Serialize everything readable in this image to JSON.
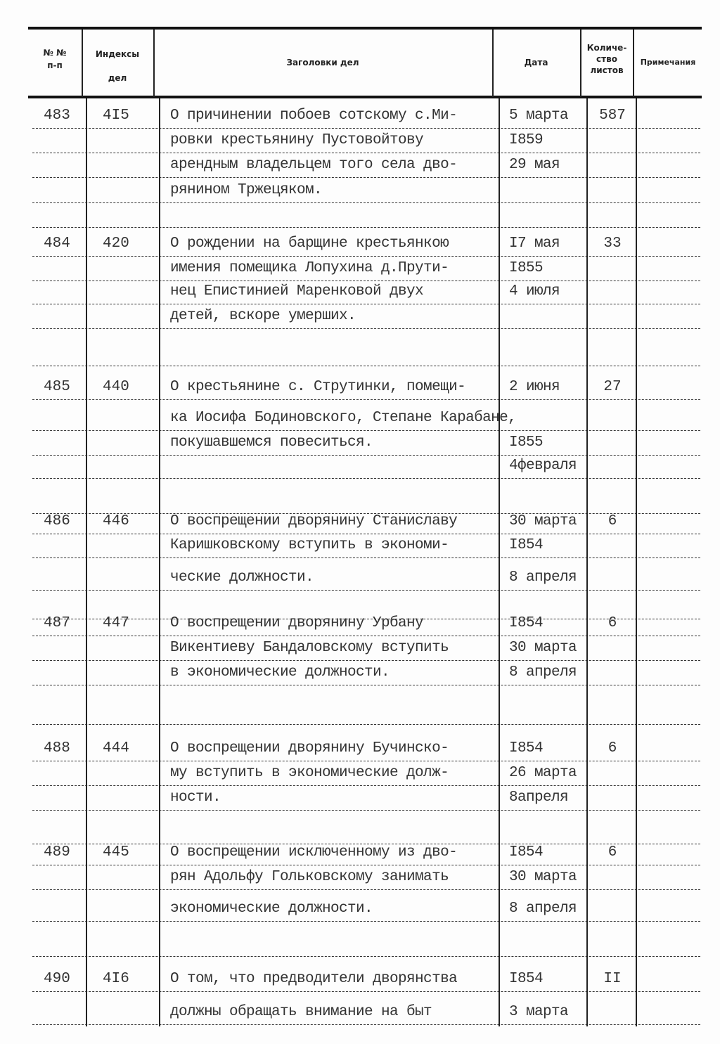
{
  "header": {
    "num": "№ №\nп-п",
    "index": "Индексы\nдел",
    "title": "Заголовки дел",
    "date": "Дата",
    "count": "Количе-\nство\nлистов",
    "notes": "Примечания"
  },
  "records": [
    {
      "num": "483",
      "index": "4I5",
      "count": "587",
      "lines": [
        {
          "title": "О причинении побоев сотскому с.Ми-",
          "date": "5 марта"
        },
        {
          "title": "ровки крестьянину Пустовойтову",
          "date": "I859"
        },
        {
          "title": "арендным владельцем того села дво-",
          "date": "29 мая"
        },
        {
          "title": "рянином Тржецяком.",
          "date": ""
        }
      ]
    },
    {
      "num": "484",
      "index": "420",
      "count": "33",
      "lines": [
        {
          "title": "О рождении на барщине крестьянкою",
          "date": "I7 мая"
        },
        {
          "title": "имения помещика Лопухина д.Прути-",
          "date": "I855"
        },
        {
          "title": "нец Епистинией Маренковой двух",
          "date": "4 июля"
        },
        {
          "title": "детей, вскоре умерших.",
          "date": ""
        }
      ]
    },
    {
      "num": "485",
      "index": "440",
      "count": "27",
      "lines": [
        {
          "title": "О крестьянине с. Струтинки, помещи-",
          "date": "2 июня"
        },
        {
          "title": "ка Иосифа Бодиновского, Степане Карабане,",
          "date": ""
        },
        {
          "title": "покушавшемся повеситься.",
          "date": "I855"
        },
        {
          "title": "",
          "date": "4февраля"
        }
      ]
    },
    {
      "num": "486",
      "index": "446",
      "count": "6",
      "lines": [
        {
          "title": "О воспрещении дворянину Станиславу",
          "date": "30 марта"
        },
        {
          "title": "Каришковскому вступить в экономи-",
          "date": "I854"
        },
        {
          "title": "ческие должности.",
          "date": "8 апреля"
        }
      ]
    },
    {
      "num": "487",
      "index": "447",
      "count": "6",
      "lines": [
        {
          "title": "О воспрещении дворянину  Урбану",
          "date": "I854"
        },
        {
          "title": "Викентиеву Бандаловскому вступить",
          "date": "30 марта"
        },
        {
          "title": "в экономические должности.",
          "date": "8 апреля"
        }
      ]
    },
    {
      "num": "488",
      "index": "444",
      "count": "6",
      "lines": [
        {
          "title": "О воспрещении дворянину Бучинско-",
          "date": "I854"
        },
        {
          "title": "му  вступить в экономические долж-",
          "date": "26 марта"
        },
        {
          "title": "ности.",
          "date": "8апреля"
        }
      ]
    },
    {
      "num": "489",
      "index": "445",
      "count": "6",
      "lines": [
        {
          "title": "О воспрещении исключенному из дво-",
          "date": "I854"
        },
        {
          "title": "рян Адольфу Гольковскому занимать",
          "date": "30 марта"
        },
        {
          "title": "экономические должности.",
          "date": "8 апреля"
        }
      ]
    },
    {
      "num": "490",
      "index": "4I6",
      "count": "II",
      "lines": [
        {
          "title": "О том, что предводители дворянства",
          "date": "I854"
        },
        {
          "title": "должны обращать внимание на быт",
          "date": "3 марта"
        }
      ]
    }
  ]
}
